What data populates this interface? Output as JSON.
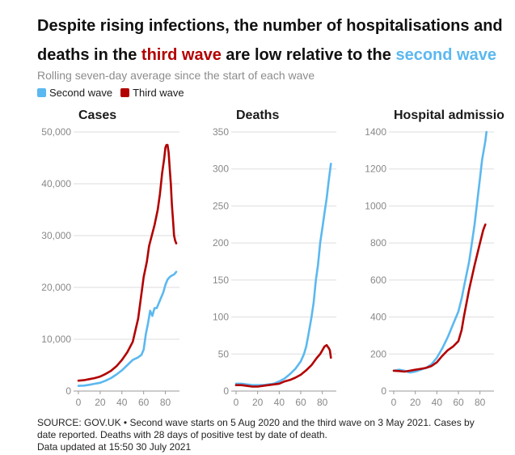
{
  "header": {
    "title_part1": "Despite rising infections, the number of hospitalisations and deaths in the ",
    "title_third": "third wave",
    "title_part2": " are low relative to the ",
    "title_second": "second wave",
    "subtitle": "Rolling seven-day average since the start of each wave"
  },
  "legend": {
    "second": "Second wave",
    "third": "Third wave"
  },
  "colors": {
    "second": "#5bb8f0",
    "third": "#b30000",
    "grid": "#dddddd",
    "axis": "#999999",
    "tick": "#888888"
  },
  "footer": {
    "line1": "SOURCE: GOV.UK • Second wave starts on 5 Aug 2020 and the third wave on 3 May 2021. Cases by",
    "line2": "date reported. Deaths with 28 days of positive test by date of death.",
    "line3": "Data updated at 15:50 30 July 2021"
  },
  "chart_data": [
    {
      "type": "line",
      "title": "Cases",
      "ylim": [
        0,
        50000
      ],
      "yticks": [
        0,
        10000,
        20000,
        30000,
        40000,
        50000
      ],
      "ytick_labels": [
        "0",
        "10,000",
        "20,000",
        "30,000",
        "40,000",
        "50,000"
      ],
      "xlim": [
        0,
        90
      ],
      "xticks": [
        0,
        20,
        40,
        60,
        80
      ],
      "series": [
        {
          "name": "Second wave",
          "x": [
            0,
            5,
            10,
            15,
            20,
            25,
            30,
            35,
            40,
            45,
            50,
            55,
            58,
            60,
            62,
            64,
            66,
            68,
            70,
            72,
            74,
            76,
            78,
            80,
            82,
            84,
            86,
            88,
            90
          ],
          "y": [
            1000,
            1050,
            1200,
            1400,
            1600,
            2000,
            2500,
            3200,
            4000,
            5000,
            6000,
            6500,
            7000,
            8000,
            11000,
            13000,
            15500,
            14500,
            16000,
            16000,
            17000,
            18000,
            19000,
            20500,
            21500,
            22000,
            22300,
            22500,
            23000
          ]
        },
        {
          "name": "Third wave",
          "x": [
            0,
            5,
            10,
            15,
            20,
            25,
            30,
            35,
            40,
            45,
            50,
            55,
            60,
            63,
            65,
            70,
            73,
            75,
            77,
            79,
            80,
            81,
            82,
            83,
            84,
            85,
            86,
            87,
            88,
            89,
            90
          ],
          "y": [
            2000,
            2100,
            2300,
            2500,
            2800,
            3300,
            3900,
            4800,
            6000,
            7500,
            9500,
            14000,
            22000,
            25000,
            28000,
            32000,
            35000,
            38000,
            42000,
            45000,
            47000,
            47500,
            47500,
            46000,
            43000,
            40000,
            36000,
            33000,
            30000,
            29000,
            28500
          ]
        }
      ]
    },
    {
      "type": "line",
      "title": "Deaths",
      "ylim": [
        0,
        350
      ],
      "yticks": [
        0,
        50,
        100,
        150,
        200,
        250,
        300,
        350
      ],
      "ytick_labels": [
        "0",
        "50",
        "100",
        "150",
        "200",
        "250",
        "300",
        "350"
      ],
      "xlim": [
        0,
        90
      ],
      "xticks": [
        0,
        20,
        40,
        60,
        80
      ],
      "series": [
        {
          "name": "Second wave",
          "x": [
            0,
            5,
            10,
            15,
            20,
            25,
            30,
            35,
            40,
            45,
            50,
            55,
            60,
            63,
            65,
            67,
            70,
            72,
            74,
            76,
            78,
            80,
            82,
            84,
            86,
            88
          ],
          "y": [
            10,
            10,
            9,
            8,
            8,
            8,
            9,
            10,
            13,
            17,
            23,
            30,
            40,
            50,
            60,
            75,
            100,
            120,
            150,
            170,
            200,
            220,
            240,
            260,
            285,
            307
          ]
        },
        {
          "name": "Third wave",
          "x": [
            0,
            5,
            10,
            15,
            20,
            25,
            30,
            35,
            40,
            45,
            50,
            55,
            60,
            65,
            70,
            75,
            78,
            80,
            82,
            84,
            85,
            86,
            87,
            88
          ],
          "y": [
            8,
            8,
            7,
            6,
            6,
            7,
            8,
            9,
            10,
            13,
            15,
            18,
            22,
            28,
            35,
            45,
            50,
            55,
            60,
            62,
            60,
            58,
            55,
            45
          ]
        }
      ]
    },
    {
      "type": "line",
      "title": "Hospital admissio",
      "ylim": [
        0,
        1400
      ],
      "yticks": [
        0,
        200,
        400,
        600,
        800,
        1000,
        1200,
        1400
      ],
      "ytick_labels": [
        "0",
        "200",
        "400",
        "600",
        "800",
        "1000",
        "1200",
        "1400"
      ],
      "xlim": [
        0,
        90
      ],
      "xticks": [
        0,
        20,
        40,
        60,
        80
      ],
      "series": [
        {
          "name": "Second wave",
          "x": [
            0,
            5,
            10,
            15,
            20,
            25,
            30,
            35,
            40,
            45,
            50,
            55,
            60,
            63,
            65,
            70,
            72,
            75,
            78,
            80,
            82,
            85,
            86
          ],
          "y": [
            110,
            115,
            110,
            100,
            105,
            115,
            125,
            145,
            180,
            230,
            290,
            360,
            430,
            500,
            560,
            700,
            780,
            900,
            1050,
            1150,
            1250,
            1350,
            1400
          ]
        },
        {
          "name": "Third wave",
          "x": [
            0,
            5,
            10,
            15,
            20,
            25,
            30,
            35,
            40,
            45,
            50,
            55,
            60,
            63,
            65,
            70,
            75,
            80,
            83,
            85
          ],
          "y": [
            110,
            108,
            105,
            110,
            115,
            120,
            125,
            135,
            155,
            190,
            220,
            240,
            270,
            330,
            400,
            550,
            680,
            800,
            870,
            900
          ]
        }
      ]
    }
  ]
}
